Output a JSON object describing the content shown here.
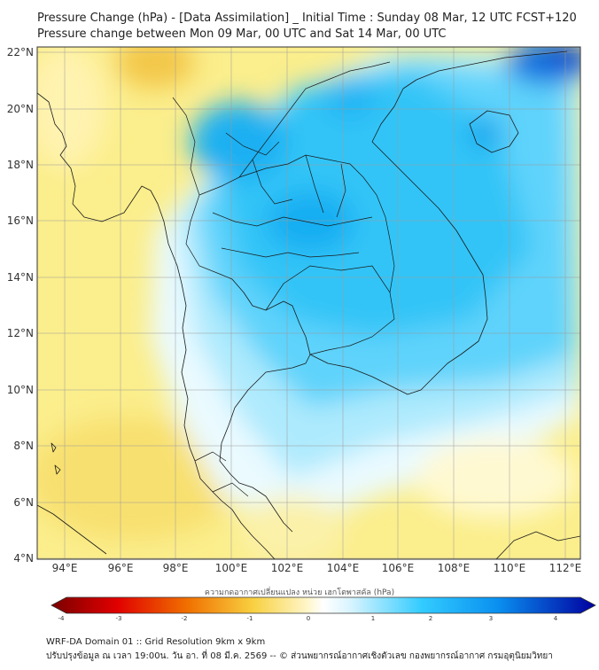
{
  "header": {
    "title_line1": "Pressure Change (hPa) - [Data Assimilation] _ Initial Time : Sunday 08 Mar, 12 UTC FCST+120",
    "title_line2": "Pressure change between Mon 09 Mar, 00 UTC and Sat 14 Mar, 00 UTC"
  },
  "map": {
    "lat_labels": [
      "22°N",
      "20°N",
      "18°N",
      "16°N",
      "14°N",
      "12°N",
      "10°N",
      "8°N",
      "6°N",
      "4°N"
    ],
    "lon_labels": [
      "94°E",
      "96°E",
      "98°E",
      "100°E",
      "102°E",
      "104°E",
      "106°E",
      "108°E",
      "110°E",
      "112°E"
    ],
    "colors": {
      "land_line": "#1a1a1a",
      "grid": "#9a9a9a"
    }
  },
  "colorbar": {
    "title": "ความกดอากาศเปลี่ยนแปลง หน่วย เฮกโตพาสคัล (hPa)",
    "ticks": [
      "-4",
      "-3",
      "-2",
      "-1",
      "0",
      "1",
      "2",
      "3",
      "4"
    ],
    "colors": {
      "neg_max": "#7a0000",
      "neg_mid": "#f0b000",
      "zero": "#ffffff",
      "pos_mid": "#33ccff",
      "pos_max": "#0000a0"
    }
  },
  "footer": {
    "line1": "WRF-DA Domain 01 :: Grid Resolution 9km x 9km",
    "line2": "ปรับปรุงข้อมูล ณ เวลา 19:00น. วัน อา. ที่ 08 มี.ค. 2569 -- © ส่วนพยากรณ์อากาศเชิงตัวเลข กองพยากรณ์อากาศ กรมอุตุนิยมวิทยา"
  }
}
